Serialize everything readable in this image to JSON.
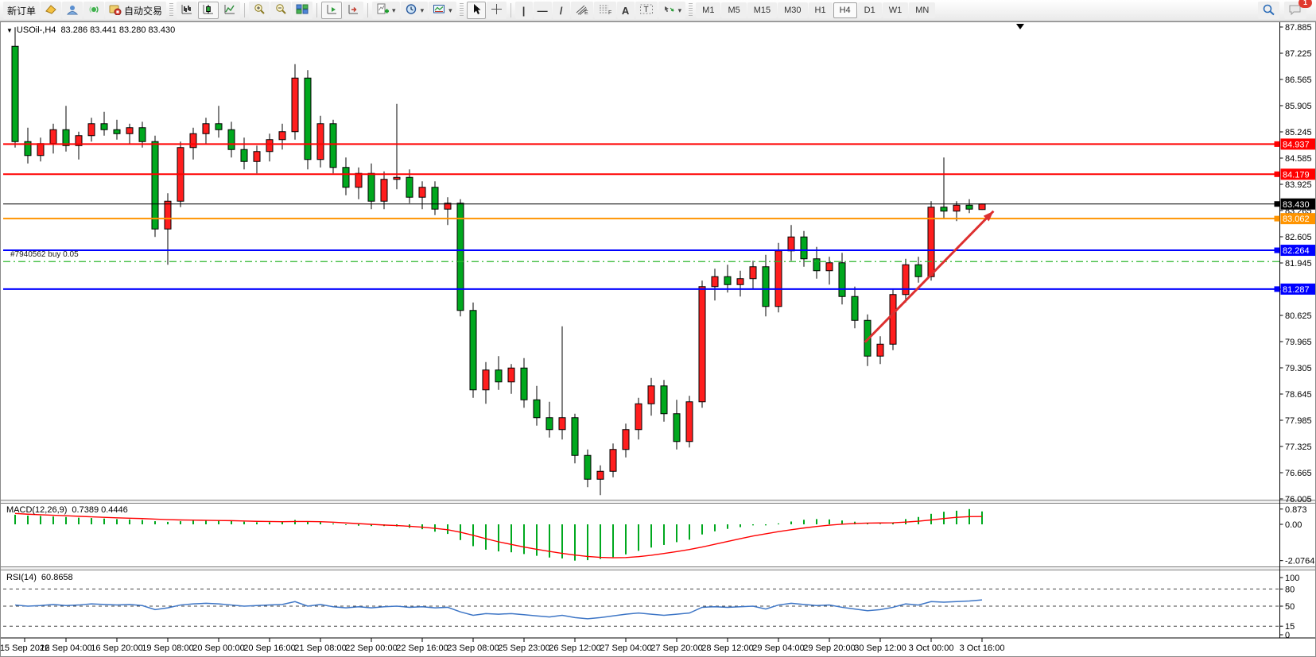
{
  "toolbar": {
    "new_order_label": "新订单",
    "autotrade_label": "自动交易",
    "timeframes": [
      "M1",
      "M5",
      "M15",
      "M30",
      "H1",
      "H4",
      "D1",
      "W1",
      "MN"
    ],
    "active_timeframe": "H4",
    "notification_count": "1"
  },
  "icons": {
    "symbol_dropdown": "▼",
    "vline": "|",
    "hline": "—",
    "trendline": "/",
    "text_tool": "A",
    "label_tool": "T",
    "chevron": "▾",
    "crosshair": "+"
  },
  "chart_data": {
    "type": "candlestick",
    "symbol_period": "USOil-,H4",
    "ohlc_display": "83.286 83.441 83.280 83.430",
    "up_color": "#ff1e1e",
    "down_color": "#00a81e",
    "price_ticks": [
      "87.885",
      "87.225",
      "86.565",
      "85.905",
      "85.245",
      "84.585",
      "83.925",
      "83.265",
      "82.605",
      "81.945",
      "81.285",
      "80.625",
      "79.965",
      "79.305",
      "78.645",
      "77.985",
      "77.325",
      "76.665",
      "76.005"
    ],
    "price_range": {
      "max": 87.885,
      "min": 76.005
    },
    "time_labels": [
      "15 Sep 2022",
      "16 Sep 04:00",
      "16 Sep 20:00",
      "19 Sep 08:00",
      "20 Sep 00:00",
      "20 Sep 16:00",
      "21 Sep 08:00",
      "22 Sep 00:00",
      "22 Sep 16:00",
      "23 Sep 08:00",
      "25 Sep 23:00",
      "26 Sep 12:00",
      "27 Sep 04:00",
      "27 Sep 20:00",
      "28 Sep 12:00",
      "29 Sep 04:00",
      "29 Sep 20:00",
      "30 Sep 12:00",
      "3 Oct 00:00",
      "3 Oct 16:00"
    ],
    "candles": [
      [
        87.4,
        87.88,
        84.85,
        85.0
      ],
      [
        85.0,
        85.35,
        84.45,
        84.65
      ],
      [
        84.65,
        85.1,
        84.5,
        84.95
      ],
      [
        84.95,
        85.45,
        84.7,
        85.3
      ],
      [
        85.3,
        85.9,
        84.75,
        84.9
      ],
      [
        84.9,
        85.25,
        84.55,
        85.15
      ],
      [
        85.15,
        85.6,
        85.0,
        85.45
      ],
      [
        85.45,
        85.75,
        85.15,
        85.3
      ],
      [
        85.3,
        85.55,
        85.05,
        85.2
      ],
      [
        85.2,
        85.45,
        84.95,
        85.35
      ],
      [
        85.35,
        85.5,
        84.85,
        85.0
      ],
      [
        85.0,
        85.15,
        82.6,
        82.8
      ],
      [
        82.8,
        83.7,
        81.9,
        83.5
      ],
      [
        83.5,
        85.0,
        83.35,
        84.85
      ],
      [
        84.85,
        85.35,
        84.55,
        85.2
      ],
      [
        85.2,
        85.6,
        84.95,
        85.45
      ],
      [
        85.45,
        85.9,
        85.1,
        85.3
      ],
      [
        85.3,
        85.5,
        84.6,
        84.8
      ],
      [
        84.8,
        85.1,
        84.3,
        84.5
      ],
      [
        84.5,
        84.9,
        84.2,
        84.75
      ],
      [
        84.75,
        85.2,
        84.5,
        85.05
      ],
      [
        85.05,
        85.45,
        84.8,
        85.25
      ],
      [
        85.25,
        86.95,
        85.05,
        86.6
      ],
      [
        86.6,
        86.8,
        84.3,
        84.55
      ],
      [
        84.55,
        85.65,
        84.35,
        85.45
      ],
      [
        85.45,
        85.55,
        84.2,
        84.35
      ],
      [
        84.35,
        84.6,
        83.65,
        83.85
      ],
      [
        83.85,
        84.35,
        83.55,
        84.2
      ],
      [
        84.2,
        84.45,
        83.3,
        83.5
      ],
      [
        83.5,
        84.25,
        83.3,
        84.05
      ],
      [
        84.05,
        85.95,
        83.8,
        84.1
      ],
      [
        84.1,
        84.3,
        83.45,
        83.6
      ],
      [
        83.6,
        84.0,
        83.3,
        83.85
      ],
      [
        83.85,
        84.0,
        83.15,
        83.3
      ],
      [
        83.3,
        83.6,
        82.9,
        83.45
      ],
      [
        83.45,
        83.55,
        80.6,
        80.75
      ],
      [
        80.75,
        80.95,
        78.55,
        78.75
      ],
      [
        78.75,
        79.45,
        78.4,
        79.25
      ],
      [
        79.25,
        79.6,
        78.75,
        78.95
      ],
      [
        78.95,
        79.4,
        78.65,
        79.3
      ],
      [
        79.3,
        79.55,
        78.3,
        78.5
      ],
      [
        78.5,
        78.85,
        77.85,
        78.05
      ],
      [
        78.05,
        78.45,
        77.55,
        77.75
      ],
      [
        77.75,
        80.35,
        77.5,
        78.05
      ],
      [
        78.05,
        78.15,
        76.9,
        77.1
      ],
      [
        77.1,
        77.25,
        76.3,
        76.5
      ],
      [
        76.5,
        76.85,
        76.1,
        76.7
      ],
      [
        76.7,
        77.4,
        76.55,
        77.25
      ],
      [
        77.25,
        77.9,
        77.05,
        77.75
      ],
      [
        77.75,
        78.55,
        77.5,
        78.4
      ],
      [
        78.4,
        79.05,
        78.1,
        78.85
      ],
      [
        78.85,
        79.0,
        77.95,
        78.15
      ],
      [
        78.15,
        78.5,
        77.25,
        77.45
      ],
      [
        77.45,
        78.6,
        77.3,
        78.45
      ],
      [
        78.45,
        81.5,
        78.3,
        81.35
      ],
      [
        81.35,
        81.8,
        81.0,
        81.6
      ],
      [
        81.6,
        81.9,
        81.2,
        81.4
      ],
      [
        81.4,
        81.75,
        81.1,
        81.55
      ],
      [
        81.55,
        82.0,
        81.3,
        81.85
      ],
      [
        81.85,
        82.15,
        80.6,
        80.85
      ],
      [
        80.85,
        82.45,
        80.7,
        82.25
      ],
      [
        82.25,
        82.9,
        82.0,
        82.6
      ],
      [
        82.6,
        82.75,
        81.85,
        82.05
      ],
      [
        82.05,
        82.35,
        81.55,
        81.75
      ],
      [
        81.75,
        82.1,
        81.4,
        81.95
      ],
      [
        81.95,
        82.2,
        80.9,
        81.1
      ],
      [
        81.1,
        81.35,
        80.3,
        80.5
      ],
      [
        80.5,
        80.65,
        79.35,
        79.6
      ],
      [
        79.6,
        80.1,
        79.4,
        79.9
      ],
      [
        79.9,
        81.3,
        79.75,
        81.15
      ],
      [
        81.15,
        82.05,
        80.95,
        81.9
      ],
      [
        81.9,
        82.1,
        81.45,
        81.6
      ],
      [
        81.6,
        83.5,
        81.5,
        83.35
      ],
      [
        83.35,
        84.6,
        83.05,
        83.25
      ],
      [
        83.25,
        83.5,
        83.0,
        83.4
      ],
      [
        83.4,
        83.55,
        83.2,
        83.3
      ],
      [
        83.29,
        83.44,
        83.28,
        83.43
      ]
    ],
    "hlines": [
      {
        "price": 84.937,
        "label": "84.937",
        "color": "#ff0000",
        "width": 2
      },
      {
        "price": 84.179,
        "label": "84.179",
        "color": "#ff0000",
        "width": 2
      },
      {
        "price": 83.43,
        "label": "83.430",
        "color": "#000000",
        "width": 1
      },
      {
        "price": 83.062,
        "label": "83.062",
        "color": "#ff9400",
        "width": 2
      },
      {
        "price": 82.264,
        "label": "82.264",
        "color": "#0000ff",
        "width": 2
      },
      {
        "price": 81.287,
        "label": "81.287",
        "color": "#0000ff",
        "width": 2
      }
    ],
    "position_line": {
      "price": 81.98,
      "color": "#2eb82e",
      "label": "#7940562 buy 0.05"
    },
    "arrow": {
      "from": {
        "bar": 66.8,
        "price": 79.95
      },
      "to": {
        "bar": 76.9,
        "price": 83.25
      },
      "color": "#dd2f2f"
    },
    "shift_marker_bar": 79.0,
    "macd": {
      "title": "MACD(12,26,9)",
      "values": "0.7389 0.4446",
      "scale_labels": [
        "0.873",
        "0.00",
        "-2.0764"
      ],
      "scale_values": [
        0.873,
        0.0,
        -2.0764
      ],
      "histogram_color": "#00a81e",
      "signal_color": "#ff0000",
      "histogram": [
        0.55,
        0.5,
        0.48,
        0.45,
        0.42,
        0.38,
        0.36,
        0.33,
        0.3,
        0.28,
        0.25,
        0.18,
        0.14,
        0.18,
        0.22,
        0.25,
        0.24,
        0.2,
        0.15,
        0.12,
        0.12,
        0.14,
        0.25,
        0.16,
        0.12,
        0.05,
        -0.04,
        -0.08,
        -0.1,
        -0.1,
        -0.12,
        -0.2,
        -0.28,
        -0.42,
        -0.55,
        -0.9,
        -1.25,
        -1.45,
        -1.55,
        -1.6,
        -1.7,
        -1.8,
        -1.9,
        -1.95,
        -2.0764,
        -2.05,
        -1.98,
        -1.88,
        -1.72,
        -1.52,
        -1.33,
        -1.18,
        -1.02,
        -0.88,
        -0.58,
        -0.4,
        -0.26,
        -0.16,
        -0.06,
        -0.06,
        0.05,
        0.16,
        0.26,
        0.3,
        0.28,
        0.22,
        0.15,
        0.06,
        0.03,
        0.1,
        0.3,
        0.42,
        0.6,
        0.72,
        0.78,
        0.873,
        0.739
      ],
      "signal": [
        0.62,
        0.58,
        0.55,
        0.52,
        0.49,
        0.46,
        0.43,
        0.4,
        0.37,
        0.35,
        0.33,
        0.3,
        0.27,
        0.25,
        0.24,
        0.23,
        0.22,
        0.21,
        0.19,
        0.17,
        0.16,
        0.15,
        0.16,
        0.16,
        0.15,
        0.12,
        0.08,
        0.04,
        0.0,
        -0.04,
        -0.07,
        -0.11,
        -0.16,
        -0.23,
        -0.31,
        -0.45,
        -0.63,
        -0.82,
        -1.0,
        -1.15,
        -1.3,
        -1.43,
        -1.55,
        -1.66,
        -1.76,
        -1.84,
        -1.89,
        -1.91,
        -1.9,
        -1.85,
        -1.77,
        -1.67,
        -1.56,
        -1.44,
        -1.3,
        -1.14,
        -0.98,
        -0.82,
        -0.67,
        -0.54,
        -0.42,
        -0.31,
        -0.21,
        -0.12,
        -0.05,
        0.01,
        0.05,
        0.07,
        0.08,
        0.09,
        0.13,
        0.18,
        0.25,
        0.33,
        0.4,
        0.44,
        0.4446
      ]
    },
    "rsi": {
      "title": "RSI(14)",
      "value": "60.8658",
      "line_color": "#3e76c6",
      "scale_labels": [
        "100",
        "80",
        "50",
        "15",
        "0"
      ],
      "levels_dashed": [
        80,
        50,
        15
      ],
      "series": [
        52,
        50,
        51,
        53,
        51,
        52,
        54,
        53,
        52,
        53,
        51,
        44,
        47,
        52,
        54,
        55,
        54,
        52,
        50,
        51,
        52,
        53,
        58,
        50,
        53,
        49,
        47,
        49,
        47,
        49,
        50,
        48,
        49,
        47,
        48,
        40,
        34,
        37,
        36,
        37,
        35,
        33,
        31,
        34,
        30,
        28,
        30,
        33,
        36,
        38,
        36,
        34,
        36,
        38,
        48,
        49,
        48,
        49,
        50,
        45,
        52,
        55,
        53,
        51,
        52,
        48,
        45,
        42,
        44,
        48,
        54,
        52,
        58,
        57,
        58,
        59,
        60.8658
      ]
    }
  }
}
